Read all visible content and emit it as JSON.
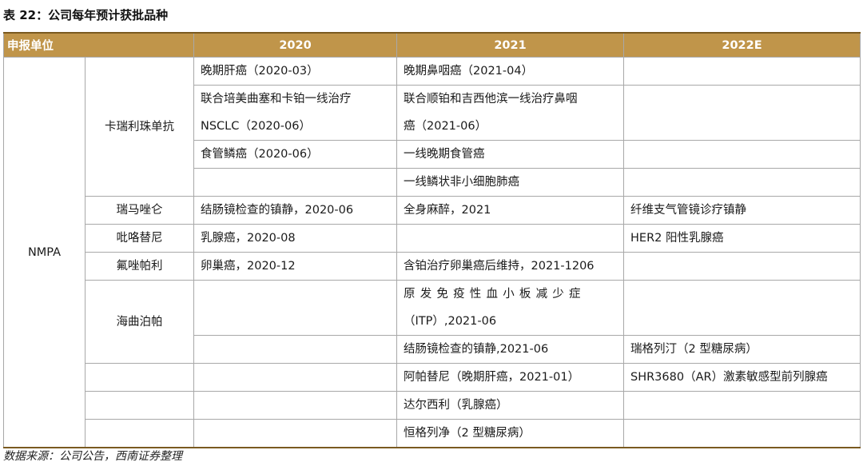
{
  "title": "表 22：公司每年预计获批品种",
  "headers": [
    "申报单位",
    "2020",
    "2021",
    "2022E"
  ],
  "org": "NMPA",
  "drugs": {
    "d1": "卡瑞利珠单抗",
    "d2": "瑞马唑仑",
    "d3": "吡咯替尼",
    "d4": "氟唑帕利",
    "d5": "海曲泊帕"
  },
  "cells": {
    "r1_2020": "晚期肝癌（2020-03）",
    "r1_2021": "晚期鼻咽癌（2021-04）",
    "r2_2020a": "联合培美曲塞和卡铂一线治疗",
    "r2_2020b": "NSCLC（2020-06）",
    "r2_2021a": "联合顺铂和吉西他滨一线治疗鼻咽",
    "r2_2021b": "癌（2021-06）",
    "r3_2020": "食管鳞癌（2020-06）",
    "r3_2021": "一线晚期食管癌",
    "r4_2021": "一线鳞状非小细胞肺癌",
    "r5_2020": "结肠镜检查的镇静，2020-06",
    "r5_2021": "全身麻醉，2021",
    "r5_2022": "纤维支气管镜诊疗镇静",
    "r6_2020": "乳腺癌，2020-08",
    "r6_2022": "HER2 阳性乳腺癌",
    "r7_2020": "卵巢癌，2020-12",
    "r7_2021": "含铂治疗卵巢癌后维持，2021-1206",
    "r8_2021a": "原发免疫性血小板减少症",
    "r8_2021b": "（ITP）,2021-06",
    "r9_2021": "结肠镜检查的镇静,2021-06",
    "r9_2022": "瑞格列汀（2 型糖尿病）",
    "r10_2021": "阿帕替尼（晚期肝癌，2021-01）",
    "r10_2022": "SHR3680（AR）激素敏感型前列腺癌",
    "r11_2021": "达尔西利（乳腺癌）",
    "r12_2021": "恒格列净（2 型糖尿病）"
  },
  "source": "数据来源：公司公告，西南证券整理"
}
